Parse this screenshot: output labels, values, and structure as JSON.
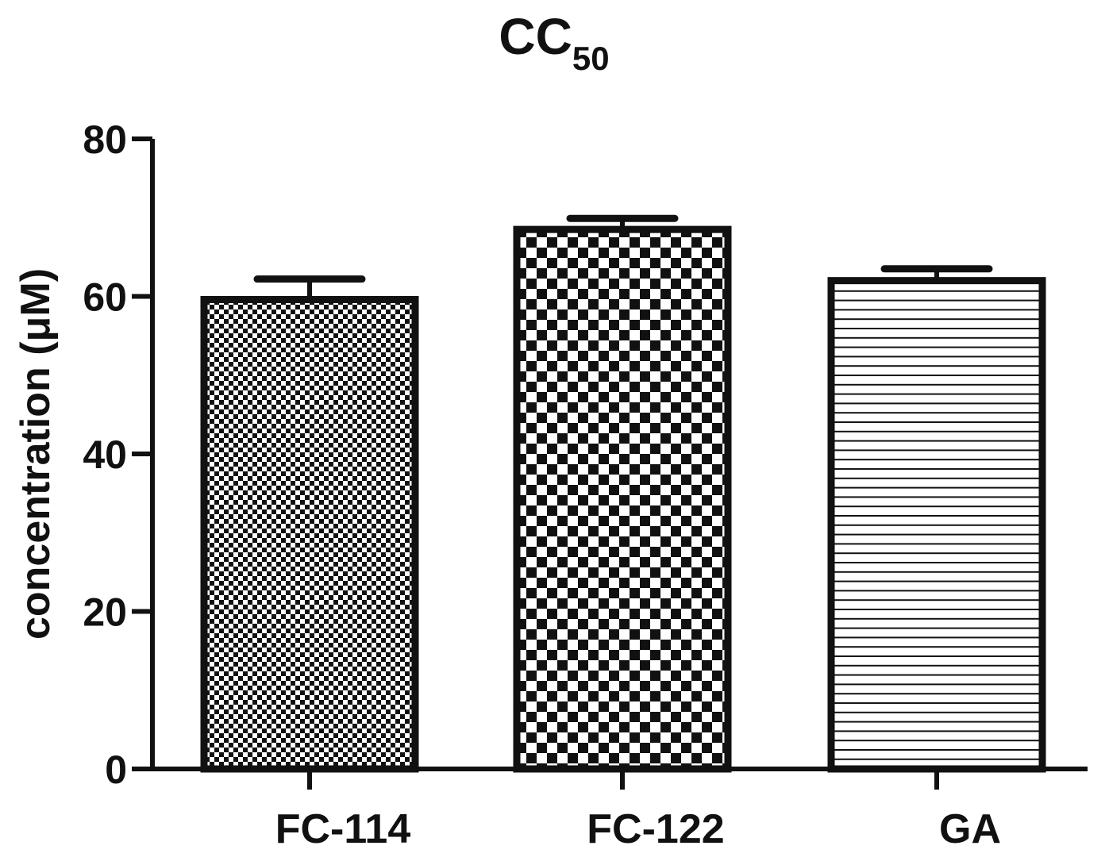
{
  "chart_data": {
    "type": "bar",
    "title_main": "CC",
    "title_sub": "50",
    "xlabel": "",
    "ylabel": "concentration (μM)",
    "ylim": [
      0,
      80
    ],
    "yticks": [
      0,
      20,
      40,
      60,
      80
    ],
    "grid": false,
    "legend": "none",
    "categories": [
      "FC-114",
      "FC-122",
      "GA"
    ],
    "values": [
      59.6,
      68.5,
      62.0
    ],
    "errors": [
      2.6,
      1.4,
      1.5
    ],
    "patterns": [
      "fine-checker",
      "coarse-checker",
      "horizontal-lines"
    ],
    "colors": {
      "stroke": "#111111",
      "fill": "#ffffff"
    }
  }
}
